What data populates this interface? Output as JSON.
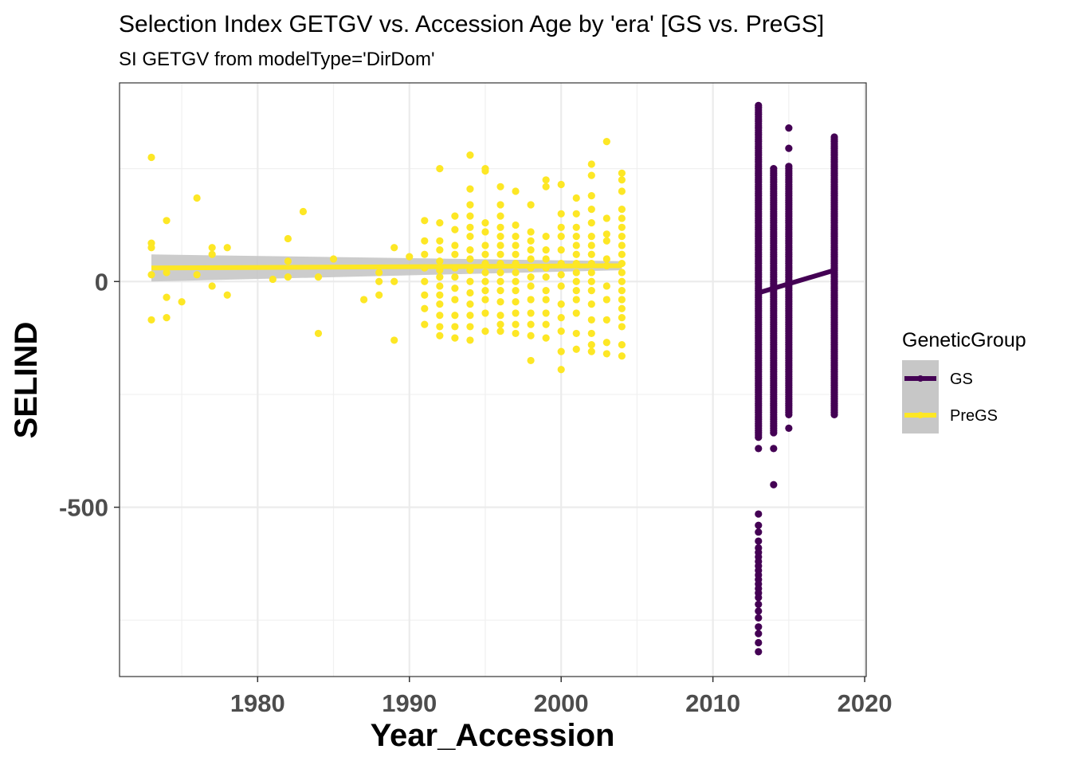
{
  "chart_data": {
    "type": "scatter",
    "title": "Selection Index GETGV vs. Accession Age by 'era' [GS vs. PreGS]",
    "subtitle": "SI GETGV from modelType='DirDom'",
    "xlabel": "Year_Accession",
    "ylabel": "SELIND",
    "xlim": [
      1970.9,
      2020.1
    ],
    "ylim": [
      -875,
      440
    ],
    "x_ticks": [
      1980,
      1990,
      2000,
      2010,
      2020
    ],
    "y_ticks": [
      0,
      -500
    ],
    "grid": true,
    "legend": {
      "title": "GeneticGroup",
      "position": "right",
      "entries": [
        "GS",
        "PreGS"
      ]
    },
    "colors": {
      "GS": "#440154",
      "PreGS": "#fde725",
      "ci_band": "#c7c7c7"
    },
    "series": [
      {
        "name": "PreGS",
        "points": [
          [
            1973,
            275
          ],
          [
            1973,
            85
          ],
          [
            1973,
            75
          ],
          [
            1973,
            15
          ],
          [
            1973,
            -85
          ],
          [
            1974,
            135
          ],
          [
            1974,
            20
          ],
          [
            1974,
            -35
          ],
          [
            1974,
            -80
          ],
          [
            1975,
            -45
          ],
          [
            1976,
            185
          ],
          [
            1976,
            15
          ],
          [
            1977,
            75
          ],
          [
            1977,
            60
          ],
          [
            1977,
            -10
          ],
          [
            1978,
            75
          ],
          [
            1978,
            -30
          ],
          [
            1981,
            5
          ],
          [
            1982,
            95
          ],
          [
            1982,
            45
          ],
          [
            1982,
            10
          ],
          [
            1983,
            155
          ],
          [
            1984,
            10
          ],
          [
            1984,
            -115
          ],
          [
            1985,
            50
          ],
          [
            1987,
            -40
          ],
          [
            1988,
            20
          ],
          [
            1988,
            0
          ],
          [
            1988,
            -30
          ],
          [
            1989,
            75
          ],
          [
            1989,
            0
          ],
          [
            1989,
            -130
          ],
          [
            1990,
            55
          ],
          [
            1991,
            135
          ],
          [
            1991,
            90
          ],
          [
            1991,
            60
          ],
          [
            1991,
            30
          ],
          [
            1991,
            0
          ],
          [
            1991,
            -30
          ],
          [
            1991,
            -60
          ],
          [
            1991,
            -95
          ],
          [
            1992,
            250
          ],
          [
            1992,
            130
          ],
          [
            1992,
            90
          ],
          [
            1992,
            70
          ],
          [
            1992,
            45
          ],
          [
            1992,
            25
          ],
          [
            1992,
            10
          ],
          [
            1992,
            -10
          ],
          [
            1992,
            -30
          ],
          [
            1992,
            -50
          ],
          [
            1992,
            -75
          ],
          [
            1992,
            -100
          ],
          [
            1992,
            -120
          ],
          [
            1993,
            145
          ],
          [
            1993,
            115
          ],
          [
            1993,
            80
          ],
          [
            1993,
            60
          ],
          [
            1993,
            30
          ],
          [
            1993,
            10
          ],
          [
            1993,
            -15
          ],
          [
            1993,
            -40
          ],
          [
            1993,
            -75
          ],
          [
            1993,
            -100
          ],
          [
            1993,
            -125
          ],
          [
            1994,
            280
          ],
          [
            1994,
            205
          ],
          [
            1994,
            170
          ],
          [
            1994,
            145
          ],
          [
            1994,
            120
          ],
          [
            1994,
            100
          ],
          [
            1994,
            70
          ],
          [
            1994,
            50
          ],
          [
            1994,
            25
          ],
          [
            1994,
            0
          ],
          [
            1994,
            -25
          ],
          [
            1994,
            -50
          ],
          [
            1994,
            -75
          ],
          [
            1994,
            -100
          ],
          [
            1994,
            -130
          ],
          [
            1995,
            250
          ],
          [
            1995,
            245
          ],
          [
            1995,
            130
          ],
          [
            1995,
            110
          ],
          [
            1995,
            80
          ],
          [
            1995,
            60
          ],
          [
            1995,
            40
          ],
          [
            1995,
            20
          ],
          [
            1995,
            0
          ],
          [
            1995,
            -20
          ],
          [
            1995,
            -40
          ],
          [
            1995,
            -70
          ],
          [
            1995,
            -110
          ],
          [
            1996,
            210
          ],
          [
            1996,
            170
          ],
          [
            1996,
            145
          ],
          [
            1996,
            120
          ],
          [
            1996,
            100
          ],
          [
            1996,
            80
          ],
          [
            1996,
            60
          ],
          [
            1996,
            40
          ],
          [
            1996,
            20
          ],
          [
            1996,
            0
          ],
          [
            1996,
            -20
          ],
          [
            1996,
            -45
          ],
          [
            1996,
            -75
          ],
          [
            1996,
            -95
          ],
          [
            1996,
            -110
          ],
          [
            1997,
            200
          ],
          [
            1997,
            125
          ],
          [
            1997,
            100
          ],
          [
            1997,
            80
          ],
          [
            1997,
            60
          ],
          [
            1997,
            40
          ],
          [
            1997,
            20
          ],
          [
            1997,
            0
          ],
          [
            1997,
            -20
          ],
          [
            1997,
            -45
          ],
          [
            1997,
            -70
          ],
          [
            1997,
            -95
          ],
          [
            1997,
            -115
          ],
          [
            1998,
            170
          ],
          [
            1998,
            110
          ],
          [
            1998,
            90
          ],
          [
            1998,
            70
          ],
          [
            1998,
            50
          ],
          [
            1998,
            30
          ],
          [
            1998,
            10
          ],
          [
            1998,
            -10
          ],
          [
            1998,
            -40
          ],
          [
            1998,
            -70
          ],
          [
            1998,
            -95
          ],
          [
            1998,
            -120
          ],
          [
            1998,
            -175
          ],
          [
            1999,
            225
          ],
          [
            1999,
            210
          ],
          [
            1999,
            100
          ],
          [
            1999,
            70
          ],
          [
            1999,
            50
          ],
          [
            1999,
            30
          ],
          [
            1999,
            10
          ],
          [
            1999,
            -20
          ],
          [
            1999,
            -40
          ],
          [
            1999,
            -70
          ],
          [
            1999,
            -95
          ],
          [
            1999,
            -125
          ],
          [
            2000,
            215
          ],
          [
            2000,
            150
          ],
          [
            2000,
            120
          ],
          [
            2000,
            100
          ],
          [
            2000,
            70
          ],
          [
            2000,
            40
          ],
          [
            2000,
            15
          ],
          [
            2000,
            -10
          ],
          [
            2000,
            -50
          ],
          [
            2000,
            -80
          ],
          [
            2000,
            -110
          ],
          [
            2000,
            -155
          ],
          [
            2000,
            -195
          ],
          [
            2001,
            185
          ],
          [
            2001,
            150
          ],
          [
            2001,
            120
          ],
          [
            2001,
            100
          ],
          [
            2001,
            80
          ],
          [
            2001,
            60
          ],
          [
            2001,
            40
          ],
          [
            2001,
            20
          ],
          [
            2001,
            0
          ],
          [
            2001,
            -20
          ],
          [
            2001,
            -40
          ],
          [
            2001,
            -70
          ],
          [
            2001,
            -115
          ],
          [
            2001,
            -150
          ],
          [
            2002,
            260
          ],
          [
            2002,
            235
          ],
          [
            2002,
            190
          ],
          [
            2002,
            160
          ],
          [
            2002,
            130
          ],
          [
            2002,
            100
          ],
          [
            2002,
            80
          ],
          [
            2002,
            60
          ],
          [
            2002,
            40
          ],
          [
            2002,
            20
          ],
          [
            2002,
            0
          ],
          [
            2002,
            -20
          ],
          [
            2002,
            -50
          ],
          [
            2002,
            -85
          ],
          [
            2002,
            -115
          ],
          [
            2002,
            -140
          ],
          [
            2002,
            -155
          ],
          [
            2003,
            310
          ],
          [
            2003,
            140
          ],
          [
            2003,
            105
          ],
          [
            2003,
            90
          ],
          [
            2003,
            50
          ],
          [
            2003,
            35
          ],
          [
            2003,
            -10
          ],
          [
            2003,
            -40
          ],
          [
            2003,
            -85
          ],
          [
            2003,
            -135
          ],
          [
            2003,
            -160
          ],
          [
            2004,
            240
          ],
          [
            2004,
            225
          ],
          [
            2004,
            200
          ],
          [
            2004,
            160
          ],
          [
            2004,
            140
          ],
          [
            2004,
            120
          ],
          [
            2004,
            100
          ],
          [
            2004,
            80
          ],
          [
            2004,
            60
          ],
          [
            2004,
            40
          ],
          [
            2004,
            20
          ],
          [
            2004,
            0
          ],
          [
            2004,
            -20
          ],
          [
            2004,
            -40
          ],
          [
            2004,
            -60
          ],
          [
            2004,
            -80
          ],
          [
            2004,
            -100
          ],
          [
            2004,
            -140
          ],
          [
            2004,
            -165
          ]
        ],
        "fit": {
          "x0": 1973,
          "y0": 30,
          "x1": 2004,
          "y1": 35,
          "ci_lower_at_x0": 0,
          "ci_upper_at_x0": 60,
          "ci_lower_at_x1": 25,
          "ci_upper_at_x1": 45
        }
      },
      {
        "name": "GS",
        "strips": [
          {
            "x": 2013,
            "ymin": -345,
            "ymax": 390
          },
          {
            "x": 2014,
            "ymin": -335,
            "ymax": 250
          },
          {
            "x": 2015,
            "ymin": -295,
            "ymax": 255
          },
          {
            "x": 2018,
            "ymin": -290,
            "ymax": 320
          }
        ],
        "strip_step": 5,
        "points": [
          [
            2013,
            -370
          ],
          [
            2013,
            -515
          ],
          [
            2013,
            -540
          ],
          [
            2013,
            -555
          ],
          [
            2013,
            -575
          ],
          [
            2013,
            -590
          ],
          [
            2013,
            -600
          ],
          [
            2013,
            -610
          ],
          [
            2013,
            -620
          ],
          [
            2013,
            -630
          ],
          [
            2013,
            -640
          ],
          [
            2013,
            -650
          ],
          [
            2013,
            -660
          ],
          [
            2013,
            -670
          ],
          [
            2013,
            -680
          ],
          [
            2013,
            -690
          ],
          [
            2013,
            -700
          ],
          [
            2013,
            -715
          ],
          [
            2013,
            -730
          ],
          [
            2013,
            -745
          ],
          [
            2013,
            -765
          ],
          [
            2013,
            -780
          ],
          [
            2013,
            -800
          ],
          [
            2013,
            -820
          ],
          [
            2014,
            -370
          ],
          [
            2014,
            -450
          ],
          [
            2015,
            -325
          ],
          [
            2015,
            295
          ],
          [
            2015,
            340
          ],
          [
            2018,
            -295
          ]
        ],
        "fit": {
          "x0": 2013,
          "y0": -25,
          "x1": 2018,
          "y1": 25
        }
      }
    ]
  }
}
